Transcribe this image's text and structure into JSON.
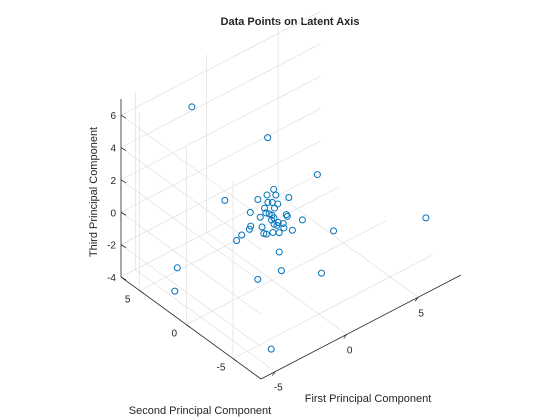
{
  "chart_data": {
    "type": "scatter",
    "projection": "3d",
    "title": "Data Points on Latent Axis",
    "xlabel": "First Principal Component",
    "ylabel": "Second Principal Component",
    "zlabel": "Third Principal Component",
    "xlim": [
      -6,
      8
    ],
    "ylim": [
      -8,
      7
    ],
    "zlim": [
      -4,
      7
    ],
    "xticks": [
      -5,
      0,
      5
    ],
    "yticks": [
      -5,
      0,
      5
    ],
    "zticks": [
      -4,
      -2,
      0,
      2,
      4,
      6
    ],
    "grid": true,
    "marker": "circle-open",
    "color": "#0072BD",
    "points": [
      {
        "x": -3.0,
        "y": 4.0,
        "z": 6.4
      },
      {
        "x": 1.0,
        "y": 2.0,
        "z": 3.5
      },
      {
        "x": 3.5,
        "y": 0.5,
        "z": 0.7
      },
      {
        "x": 7.5,
        "y": -5.0,
        "z": -1.5
      },
      {
        "x": 3.0,
        "y": -2.0,
        "z": -1.5
      },
      {
        "x": 1.5,
        "y": -3.0,
        "z": -3.0
      },
      {
        "x": -5.5,
        "y": 2.0,
        "z": -3.0
      },
      {
        "x": -5.0,
        "y": 2.5,
        "z": -2.0
      },
      {
        "x": -3.0,
        "y": -4.5,
        "z": -5.0
      },
      {
        "x": -2.0,
        "y": 2.0,
        "z": 1.0
      },
      {
        "x": -1.0,
        "y": 0.0,
        "z": -3.5
      },
      {
        "x": 0.0,
        "y": -1.0,
        "z": -3.0
      },
      {
        "x": 0.5,
        "y": 0.0,
        "z": -2.5
      },
      {
        "x": 1.0,
        "y": 1.0,
        "z": -1.5
      },
      {
        "x": 0.5,
        "y": 0.0,
        "z": -1.3
      },
      {
        "x": -1.5,
        "y": 1.5,
        "z": -1.5
      },
      {
        "x": 0.5,
        "y": -0.5,
        "z": -0.8
      },
      {
        "x": 1.0,
        "y": 1.5,
        "z": -0.3
      },
      {
        "x": 0.0,
        "y": 0.0,
        "z": 0.0
      },
      {
        "x": 0.2,
        "y": 0.1,
        "z": -0.3
      },
      {
        "x": -0.3,
        "y": 0.2,
        "z": 0.2
      },
      {
        "x": 0.3,
        "y": -0.2,
        "z": -0.5
      },
      {
        "x": -0.5,
        "y": 0.5,
        "z": -0.1
      },
      {
        "x": 0.6,
        "y": 0.3,
        "z": 0.3
      },
      {
        "x": -0.2,
        "y": -0.4,
        "z": -0.8
      },
      {
        "x": 0.1,
        "y": 0.6,
        "z": 0.5
      },
      {
        "x": -0.7,
        "y": 0.0,
        "z": -0.4
      },
      {
        "x": 0.8,
        "y": -0.3,
        "z": -0.2
      },
      {
        "x": 0.0,
        "y": 0.8,
        "z": 0.1
      },
      {
        "x": -0.4,
        "y": -0.3,
        "z": 0.4
      },
      {
        "x": 0.4,
        "y": 0.4,
        "z": -0.9
      },
      {
        "x": -1.0,
        "y": 0.8,
        "z": 0.3
      },
      {
        "x": 1.2,
        "y": 0.2,
        "z": -0.7
      },
      {
        "x": -0.9,
        "y": -0.5,
        "z": -0.5
      },
      {
        "x": 0.3,
        "y": 1.0,
        "z": 0.7
      },
      {
        "x": -0.6,
        "y": 0.6,
        "z": 1.0
      },
      {
        "x": 0.9,
        "y": -0.8,
        "z": -1.0
      },
      {
        "x": -1.3,
        "y": 0.3,
        "z": -0.2
      },
      {
        "x": 1.5,
        "y": 0.5,
        "z": 0.2
      },
      {
        "x": 0.0,
        "y": -1.2,
        "z": 0.0
      },
      {
        "x": -0.2,
        "y": 0.3,
        "z": -1.2
      },
      {
        "x": 0.7,
        "y": 0.9,
        "z": 0.9
      },
      {
        "x": -1.8,
        "y": 0.5,
        "z": -0.6
      },
      {
        "x": 1.8,
        "y": -0.5,
        "z": -0.9
      },
      {
        "x": 0.2,
        "y": -0.1,
        "z": 1.2
      },
      {
        "x": -0.8,
        "y": 1.2,
        "z": -1.0
      },
      {
        "x": 0.5,
        "y": 0.5,
        "z": 0.0
      },
      {
        "x": -0.1,
        "y": -0.1,
        "z": -0.2
      }
    ]
  }
}
